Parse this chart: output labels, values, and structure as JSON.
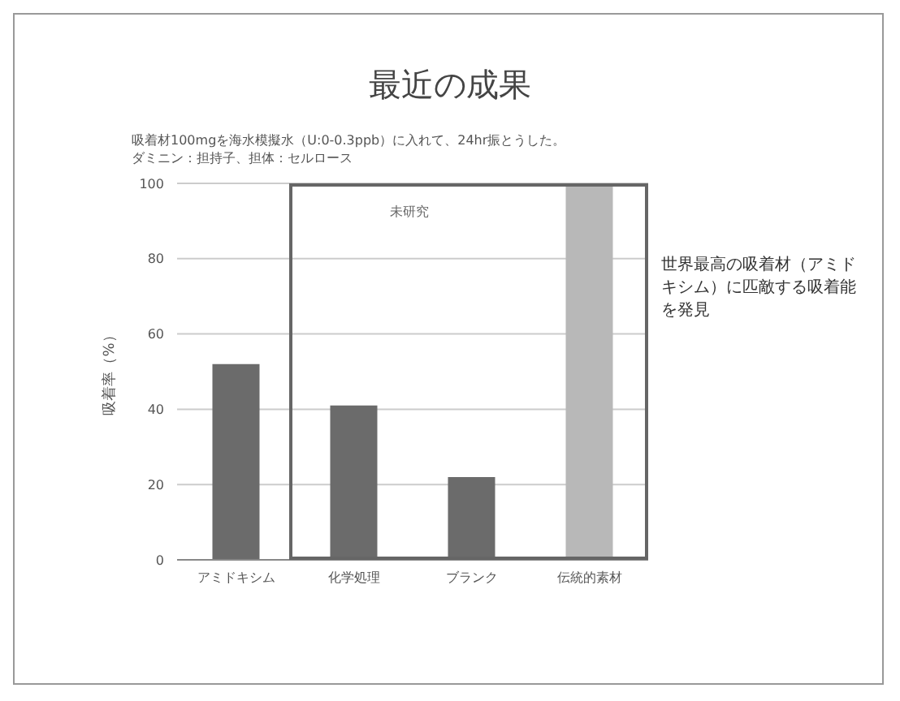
{
  "chart_data": {
    "type": "bar",
    "title": "最近の成果",
    "subtitle": "吸着材100mgを海水模擬水（U:0-0.3ppb）に入れて、24hr振とうした。ダミニン：担持子、担体：セルロース",
    "ylabel": "吸着率（%）",
    "categories": [
      "アミドキシム",
      "化学処理",
      "ブランク",
      "伝統的素材"
    ],
    "values": [
      52,
      41,
      22,
      100
    ],
    "colors": [
      "#6b6b6b",
      "#6b6b6b",
      "#6b6b6b",
      "#b8b8b8"
    ],
    "ylim": [
      0,
      100
    ],
    "yticks": [
      0,
      20,
      40,
      60,
      80,
      100
    ],
    "grid": "y",
    "annotations": [
      "未研究",
      "世界最高の吸着材（アミドキシム）に匹敵する吸着能を発見"
    ]
  }
}
